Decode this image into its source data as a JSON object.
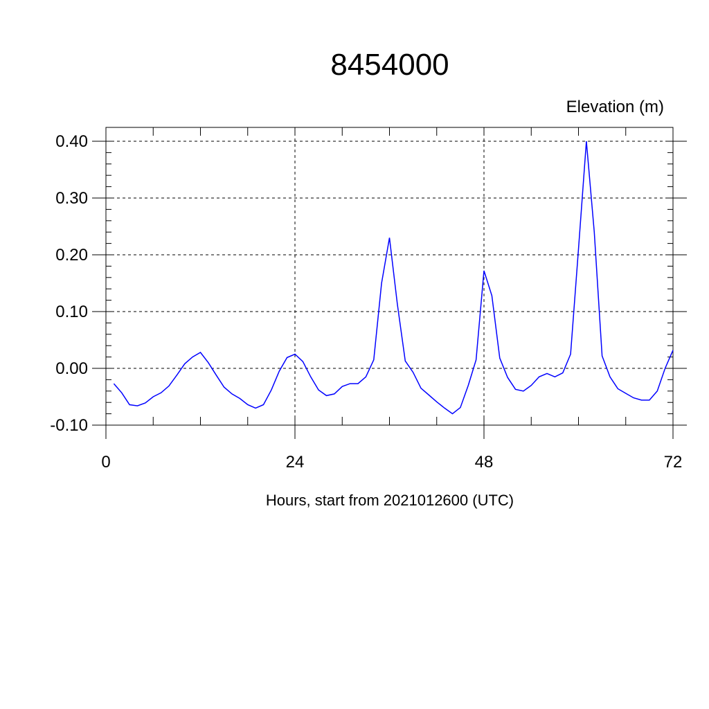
{
  "chart_data": {
    "type": "line",
    "title": "8454000",
    "ylabel": "Elevation (m)",
    "xlabel": "Hours, start from 2021012600 (UTC)",
    "xlim": [
      0,
      72
    ],
    "ylim": [
      -0.1,
      0.4
    ],
    "x_ticks": [
      0,
      24,
      48,
      72
    ],
    "x_tick_labels": [
      "0",
      "24",
      "48",
      "72"
    ],
    "y_ticks": [
      -0.1,
      0.0,
      0.1,
      0.2,
      0.3,
      0.4
    ],
    "y_tick_labels": [
      "-0.10",
      "0.00",
      "0.10",
      "0.20",
      "0.30",
      "0.40"
    ],
    "grid": "dashed",
    "series": [
      {
        "color": "#0000ff",
        "x": [
          1,
          2,
          3,
          4,
          5,
          6,
          7,
          8,
          9,
          10,
          11,
          12,
          13,
          14,
          15,
          16,
          17,
          18,
          19,
          20,
          21,
          22,
          23,
          24,
          25,
          26,
          27,
          28,
          29,
          30,
          31,
          32,
          33,
          34,
          35,
          36,
          37,
          38,
          39,
          40,
          41,
          42,
          43,
          44,
          45,
          46,
          47,
          48,
          49,
          50,
          51,
          52,
          53,
          54,
          55,
          56,
          57,
          58,
          59,
          60,
          61,
          62,
          63,
          64,
          65,
          66,
          67,
          68,
          69,
          70,
          71,
          72
        ],
        "values": [
          -0.027,
          -0.043,
          -0.064,
          -0.066,
          -0.061,
          -0.05,
          -0.043,
          -0.031,
          -0.012,
          0.008,
          0.02,
          0.028,
          0.01,
          -0.012,
          -0.033,
          -0.045,
          -0.053,
          -0.064,
          -0.07,
          -0.064,
          -0.038,
          -0.005,
          0.019,
          0.025,
          0.012,
          -0.015,
          -0.038,
          -0.048,
          -0.045,
          -0.032,
          -0.027,
          -0.027,
          -0.015,
          0.015,
          0.15,
          0.23,
          0.113,
          0.013,
          -0.007,
          -0.035,
          -0.047,
          -0.059,
          -0.07,
          -0.08,
          -0.069,
          -0.03,
          0.015,
          0.172,
          0.128,
          0.018,
          -0.016,
          -0.037,
          -0.04,
          -0.03,
          -0.015,
          -0.009,
          -0.015,
          -0.008,
          0.025,
          0.21,
          0.4,
          0.24,
          0.022,
          -0.015,
          -0.036,
          -0.044,
          -0.052,
          -0.056,
          -0.056,
          -0.04,
          0.0,
          0.032
        ]
      }
    ]
  }
}
